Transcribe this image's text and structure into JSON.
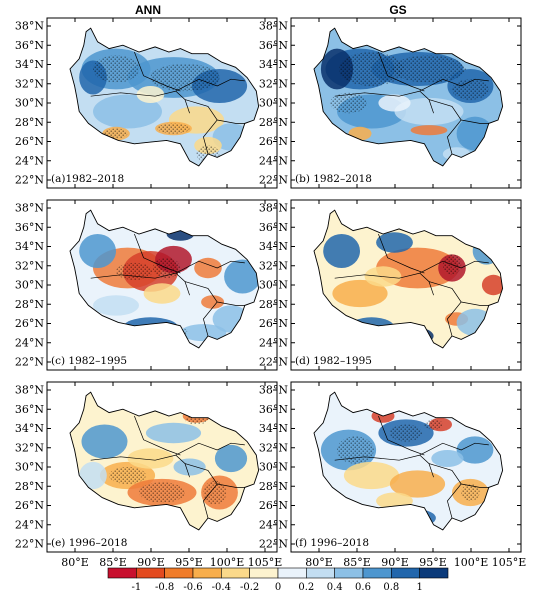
{
  "column_titles": {
    "left": "ANN",
    "right": "GS"
  },
  "y_axis_labels": [
    "38°N",
    "36°N",
    "34°N",
    "32°N",
    "30°N",
    "28°N",
    "26°N",
    "24°N",
    "22°N"
  ],
  "x_axis_labels": [
    "80°E",
    "85°E",
    "90°E",
    "95°E",
    "100°E",
    "105°E"
  ],
  "panels": [
    {
      "label": "(a)1982–2018",
      "col": "ANN",
      "period": "1982–2018",
      "dominant": "blue"
    },
    {
      "label": "(b) 1982–2018",
      "col": "GS",
      "period": "1982–2018",
      "dominant": "blue"
    },
    {
      "label": "(c) 1982–1995",
      "col": "ANN",
      "period": "1982–1995",
      "dominant": "mixed"
    },
    {
      "label": "(d) 1982–1995",
      "col": "GS",
      "period": "1982–1995",
      "dominant": "mixed"
    },
    {
      "label": "(e) 1996–2018",
      "col": "ANN",
      "period": "1996–2018",
      "dominant": "mixed"
    },
    {
      "label": "(f) 1996–2018",
      "col": "GS",
      "period": "1996–2018",
      "dominant": "mixed"
    }
  ],
  "colorbar": {
    "labels": [
      "-1",
      "-0.8",
      "-0.6",
      "-0.4",
      "-0.2",
      "0",
      "0.2",
      "0.4",
      "0.6",
      "0.8",
      "1"
    ],
    "colors": [
      "#c8102e",
      "#e34a1f",
      "#f07c2a",
      "#f8ae4c",
      "#fbd98a",
      "#fdf3cf",
      "#eaf3fb",
      "#c3def2",
      "#8cc0e6",
      "#4d96cf",
      "#2166ac",
      "#0b3a7a"
    ]
  }
}
